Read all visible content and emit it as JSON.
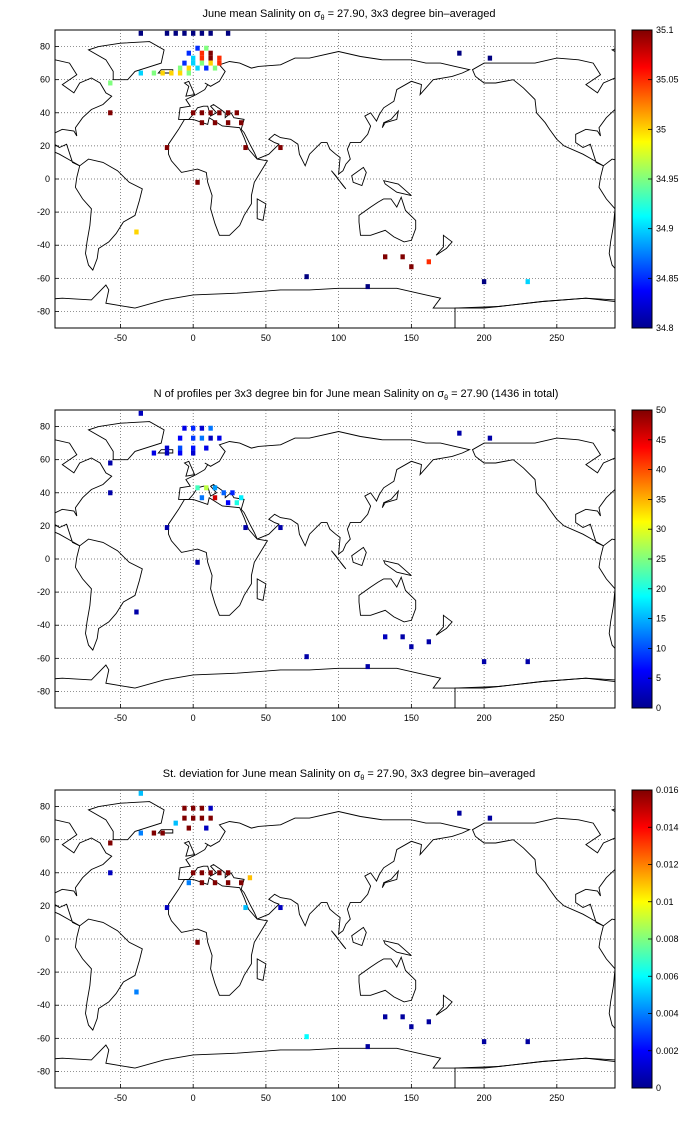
{
  "panels": [
    {
      "title_pre": "June mean Salinity on ",
      "title_sigma": "σ",
      "title_sub": "θ",
      "title_post": " = 27.90, 3x3 degree bin–averaged",
      "colorbar_ticks": [
        "35.1",
        "35.05",
        "35",
        "34.95",
        "34.9",
        "34.85",
        "34.8"
      ]
    },
    {
      "title_pre": "N of profiles per 3x3 degree bin for June mean Salinity on ",
      "title_sigma": "σ",
      "title_sub": "θ",
      "title_post": " = 27.90 (1436 in total)",
      "colorbar_ticks": [
        "50",
        "45",
        "40",
        "35",
        "30",
        "25",
        "20",
        "15",
        "10",
        "5",
        "0"
      ]
    },
    {
      "title_pre": "St. deviation for June mean Salinity on ",
      "title_sigma": "σ",
      "title_sub": "θ",
      "title_post": " = 27.90, 3x3 degree bin–averaged",
      "colorbar_ticks": [
        "0.016",
        "0.014",
        "0.012",
        "0.01",
        "0.008",
        "0.006",
        "0.004",
        "0.002",
        "0"
      ]
    }
  ],
  "chart_data": [
    {
      "type": "heatmap",
      "title": "June mean Salinity on σθ = 27.90, 3x3 degree bin–averaged",
      "xlim": [
        -95,
        290
      ],
      "ylim": [
        -90,
        90
      ],
      "xticks": [
        -50,
        0,
        50,
        100,
        150,
        200,
        250
      ],
      "yticks": [
        -80,
        -60,
        -40,
        -20,
        0,
        20,
        40,
        60,
        80
      ],
      "grid": true,
      "colorbar": {
        "range": [
          34.8,
          35.1
        ],
        "ticks": [
          34.8,
          34.85,
          34.9,
          34.95,
          35,
          35.05,
          35.1
        ]
      },
      "points": [
        {
          "lon": -36,
          "lat": 88,
          "v": 34.8
        },
        {
          "lon": -18,
          "lat": 88,
          "v": 34.8
        },
        {
          "lon": -12,
          "lat": 88,
          "v": 34.8
        },
        {
          "lon": -6,
          "lat": 88,
          "v": 34.8
        },
        {
          "lon": 0,
          "lat": 88,
          "v": 34.8
        },
        {
          "lon": 6,
          "lat": 88,
          "v": 34.8
        },
        {
          "lon": 12,
          "lat": 88,
          "v": 34.8
        },
        {
          "lon": 24,
          "lat": 88,
          "v": 34.8
        },
        {
          "lon": 3,
          "lat": 79,
          "v": 34.85
        },
        {
          "lon": 9,
          "lat": 79,
          "v": 34.95
        },
        {
          "lon": 6,
          "lat": 76,
          "v": 35.05
        },
        {
          "lon": 12,
          "lat": 76,
          "v": 35.1
        },
        {
          "lon": -3,
          "lat": 76,
          "v": 34.85
        },
        {
          "lon": 0,
          "lat": 73,
          "v": 34.9
        },
        {
          "lon": 6,
          "lat": 73,
          "v": 35.05
        },
        {
          "lon": 12,
          "lat": 73,
          "v": 35.1
        },
        {
          "lon": 18,
          "lat": 73,
          "v": 35.05
        },
        {
          "lon": -6,
          "lat": 70,
          "v": 34.85
        },
        {
          "lon": 0,
          "lat": 70,
          "v": 34.9
        },
        {
          "lon": 6,
          "lat": 70,
          "v": 34.95
        },
        {
          "lon": 12,
          "lat": 70,
          "v": 35.0
        },
        {
          "lon": 18,
          "lat": 70,
          "v": 35.05
        },
        {
          "lon": -9,
          "lat": 67,
          "v": 34.95
        },
        {
          "lon": -3,
          "lat": 67,
          "v": 35.0
        },
        {
          "lon": 3,
          "lat": 67,
          "v": 34.9
        },
        {
          "lon": 9,
          "lat": 67,
          "v": 34.85
        },
        {
          "lon": 15,
          "lat": 67,
          "v": 34.95
        },
        {
          "lon": -27,
          "lat": 64,
          "v": 34.95
        },
        {
          "lon": -21,
          "lat": 64,
          "v": 35.0
        },
        {
          "lon": -15,
          "lat": 64,
          "v": 35.0
        },
        {
          "lon": -9,
          "lat": 64,
          "v": 35.0
        },
        {
          "lon": -3,
          "lat": 64,
          "v": 34.95
        },
        {
          "lon": -36,
          "lat": 64,
          "v": 34.9
        },
        {
          "lon": -57,
          "lat": 58,
          "v": 34.95
        },
        {
          "lon": 0,
          "lat": 40,
          "v": 35.1
        },
        {
          "lon": 6,
          "lat": 40,
          "v": 35.1
        },
        {
          "lon": 12,
          "lat": 40,
          "v": 35.1
        },
        {
          "lon": 18,
          "lat": 40,
          "v": 35.1
        },
        {
          "lon": 24,
          "lat": 40,
          "v": 35.1
        },
        {
          "lon": 30,
          "lat": 40,
          "v": 35.1
        },
        {
          "lon": 6,
          "lat": 34,
          "v": 35.1
        },
        {
          "lon": 15,
          "lat": 34,
          "v": 35.1
        },
        {
          "lon": 24,
          "lat": 34,
          "v": 35.1
        },
        {
          "lon": 33,
          "lat": 34,
          "v": 35.1
        },
        {
          "lon": -57,
          "lat": 40,
          "v": 35.1
        },
        {
          "lon": -18,
          "lat": 19,
          "v": 35.1
        },
        {
          "lon": 36,
          "lat": 19,
          "v": 35.1
        },
        {
          "lon": 60,
          "lat": 19,
          "v": 35.1
        },
        {
          "lon": 3,
          "lat": -2,
          "v": 35.1
        },
        {
          "lon": -39,
          "lat": -32,
          "v": 35.0
        },
        {
          "lon": 132,
          "lat": -47,
          "v": 35.1
        },
        {
          "lon": 144,
          "lat": -47,
          "v": 35.1
        },
        {
          "lon": 150,
          "lat": -53,
          "v": 35.1
        },
        {
          "lon": 162,
          "lat": -50,
          "v": 35.05
        },
        {
          "lon": 78,
          "lat": -59,
          "v": 34.8
        },
        {
          "lon": 120,
          "lat": -65,
          "v": 34.8
        },
        {
          "lon": 200,
          "lat": -62,
          "v": 34.8
        },
        {
          "lon": 230,
          "lat": -62,
          "v": 34.9
        },
        {
          "lon": 183,
          "lat": 76,
          "v": 34.8
        },
        {
          "lon": 204,
          "lat": 73,
          "v": 34.8
        }
      ]
    },
    {
      "type": "heatmap",
      "title": "N of profiles per 3x3 degree bin for June mean Salinity on σθ = 27.90 (1436 in total)",
      "xlim": [
        -95,
        290
      ],
      "ylim": [
        -90,
        90
      ],
      "xticks": [
        -50,
        0,
        50,
        100,
        150,
        200,
        250
      ],
      "yticks": [
        -80,
        -60,
        -40,
        -20,
        0,
        20,
        40,
        60,
        80
      ],
      "grid": true,
      "colorbar": {
        "range": [
          0,
          50
        ],
        "ticks": [
          0,
          5,
          10,
          15,
          20,
          25,
          30,
          35,
          40,
          45,
          50
        ]
      },
      "points": [
        {
          "lon": -36,
          "lat": 88,
          "v": 3
        },
        {
          "lon": -6,
          "lat": 79,
          "v": 5
        },
        {
          "lon": 0,
          "lat": 79,
          "v": 8
        },
        {
          "lon": 6,
          "lat": 79,
          "v": 4
        },
        {
          "lon": 12,
          "lat": 79,
          "v": 12
        },
        {
          "lon": -9,
          "lat": 73,
          "v": 6
        },
        {
          "lon": 0,
          "lat": 73,
          "v": 9
        },
        {
          "lon": 6,
          "lat": 73,
          "v": 12
        },
        {
          "lon": 12,
          "lat": 73,
          "v": 3
        },
        {
          "lon": 18,
          "lat": 73,
          "v": 5
        },
        {
          "lon": -18,
          "lat": 67,
          "v": 4
        },
        {
          "lon": -9,
          "lat": 67,
          "v": 10
        },
        {
          "lon": 0,
          "lat": 67,
          "v": 7
        },
        {
          "lon": 9,
          "lat": 67,
          "v": 5
        },
        {
          "lon": -27,
          "lat": 64,
          "v": 5
        },
        {
          "lon": -18,
          "lat": 64,
          "v": 3
        },
        {
          "lon": -9,
          "lat": 64,
          "v": 6
        },
        {
          "lon": 0,
          "lat": 64,
          "v": 4
        },
        {
          "lon": 3,
          "lat": 43,
          "v": 22
        },
        {
          "lon": 9,
          "lat": 43,
          "v": 28
        },
        {
          "lon": 15,
          "lat": 43,
          "v": 14
        },
        {
          "lon": 21,
          "lat": 40,
          "v": 11
        },
        {
          "lon": 27,
          "lat": 40,
          "v": 8
        },
        {
          "lon": 33,
          "lat": 37,
          "v": 18
        },
        {
          "lon": 6,
          "lat": 37,
          "v": 12
        },
        {
          "lon": 15,
          "lat": 37,
          "v": 46
        },
        {
          "lon": 24,
          "lat": 34,
          "v": 6
        },
        {
          "lon": 30,
          "lat": 34,
          "v": 20
        },
        {
          "lon": -57,
          "lat": 58,
          "v": 2
        },
        {
          "lon": -57,
          "lat": 40,
          "v": 2
        },
        {
          "lon": -18,
          "lat": 19,
          "v": 2
        },
        {
          "lon": 36,
          "lat": 19,
          "v": 2
        },
        {
          "lon": 60,
          "lat": 19,
          "v": 2
        },
        {
          "lon": 3,
          "lat": -2,
          "v": 2
        },
        {
          "lon": -39,
          "lat": -32,
          "v": 2
        },
        {
          "lon": 132,
          "lat": -47,
          "v": 3
        },
        {
          "lon": 144,
          "lat": -47,
          "v": 2
        },
        {
          "lon": 150,
          "lat": -53,
          "v": 2
        },
        {
          "lon": 162,
          "lat": -50,
          "v": 2
        },
        {
          "lon": 78,
          "lat": -59,
          "v": 2
        },
        {
          "lon": 120,
          "lat": -65,
          "v": 2
        },
        {
          "lon": 200,
          "lat": -62,
          "v": 2
        },
        {
          "lon": 230,
          "lat": -62,
          "v": 2
        },
        {
          "lon": 183,
          "lat": 76,
          "v": 2
        },
        {
          "lon": 204,
          "lat": 73,
          "v": 2
        }
      ]
    },
    {
      "type": "heatmap",
      "title": "St. deviation for June mean Salinity on σθ = 27.90, 3x3 degree bin–averaged",
      "xlim": [
        -95,
        290
      ],
      "ylim": [
        -90,
        90
      ],
      "xticks": [
        -50,
        0,
        50,
        100,
        150,
        200,
        250
      ],
      "yticks": [
        -80,
        -60,
        -40,
        -20,
        0,
        20,
        40,
        60,
        80
      ],
      "grid": true,
      "colorbar": {
        "range": [
          0,
          0.016
        ],
        "ticks": [
          0,
          0.002,
          0.004,
          0.006,
          0.008,
          0.01,
          0.012,
          0.014,
          0.016
        ]
      },
      "points": [
        {
          "lon": -36,
          "lat": 88,
          "v": 0.005
        },
        {
          "lon": -6,
          "lat": 79,
          "v": 0.016
        },
        {
          "lon": 0,
          "lat": 79,
          "v": 0.016
        },
        {
          "lon": 6,
          "lat": 79,
          "v": 0.016
        },
        {
          "lon": 12,
          "lat": 79,
          "v": 0.001
        },
        {
          "lon": -6,
          "lat": 73,
          "v": 0.016
        },
        {
          "lon": 0,
          "lat": 73,
          "v": 0.016
        },
        {
          "lon": 6,
          "lat": 73,
          "v": 0.016
        },
        {
          "lon": 12,
          "lat": 73,
          "v": 0.016
        },
        {
          "lon": -12,
          "lat": 70,
          "v": 0.005
        },
        {
          "lon": -3,
          "lat": 67,
          "v": 0.016
        },
        {
          "lon": 9,
          "lat": 67,
          "v": 0.001
        },
        {
          "lon": -27,
          "lat": 64,
          "v": 0.016
        },
        {
          "lon": -21,
          "lat": 64,
          "v": 0.016
        },
        {
          "lon": -36,
          "lat": 64,
          "v": 0.004
        },
        {
          "lon": -57,
          "lat": 58,
          "v": 0.016
        },
        {
          "lon": 0,
          "lat": 40,
          "v": 0.016
        },
        {
          "lon": 6,
          "lat": 40,
          "v": 0.016
        },
        {
          "lon": 12,
          "lat": 40,
          "v": 0.016
        },
        {
          "lon": 18,
          "lat": 40,
          "v": 0.016
        },
        {
          "lon": 24,
          "lat": 40,
          "v": 0.016
        },
        {
          "lon": 6,
          "lat": 34,
          "v": 0.016
        },
        {
          "lon": 15,
          "lat": 34,
          "v": 0.016
        },
        {
          "lon": 24,
          "lat": 34,
          "v": 0.016
        },
        {
          "lon": 33,
          "lat": 34,
          "v": 0.016
        },
        {
          "lon": 39,
          "lat": 37,
          "v": 0.011
        },
        {
          "lon": -3,
          "lat": 34,
          "v": 0.004
        },
        {
          "lon": -57,
          "lat": 40,
          "v": 0.001
        },
        {
          "lon": -18,
          "lat": 19,
          "v": 0.001
        },
        {
          "lon": 36,
          "lat": 19,
          "v": 0.005
        },
        {
          "lon": 60,
          "lat": 19,
          "v": 0.001
        },
        {
          "lon": 3,
          "lat": -2,
          "v": 0.016
        },
        {
          "lon": -39,
          "lat": -32,
          "v": 0.004
        },
        {
          "lon": 132,
          "lat": -47,
          "v": 0.0005
        },
        {
          "lon": 144,
          "lat": -47,
          "v": 0.0005
        },
        {
          "lon": 150,
          "lat": -53,
          "v": 0.0005
        },
        {
          "lon": 162,
          "lat": -50,
          "v": 0.0005
        },
        {
          "lon": 78,
          "lat": -59,
          "v": 0.006
        },
        {
          "lon": 120,
          "lat": -65,
          "v": 0.0005
        },
        {
          "lon": 200,
          "lat": -62,
          "v": 0.0005
        },
        {
          "lon": 230,
          "lat": -62,
          "v": 0.0005
        },
        {
          "lon": 183,
          "lat": 76,
          "v": 0.0005
        },
        {
          "lon": 204,
          "lat": 73,
          "v": 0.0005
        }
      ]
    }
  ]
}
